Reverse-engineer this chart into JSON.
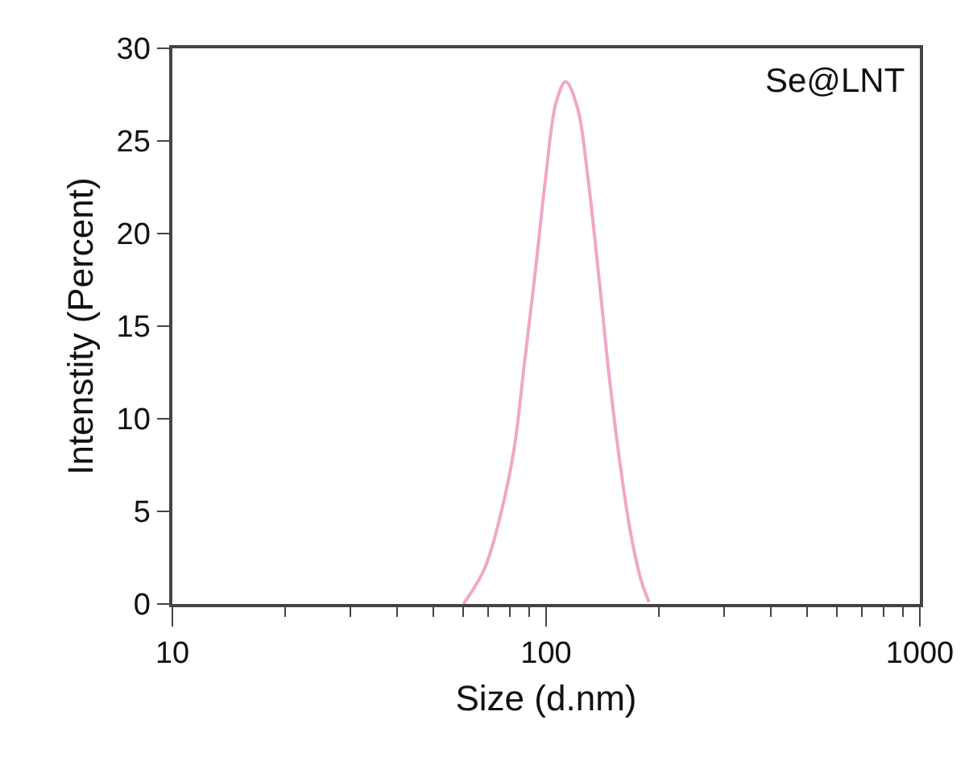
{
  "chart_data": {
    "type": "line",
    "xlabel": "Size (d.nm)",
    "ylabel": "Intenstity (Percent)",
    "log": "x",
    "annotations": [
      "Se@LNT"
    ],
    "xlim": [
      10,
      1000
    ],
    "xticks": [
      10,
      100,
      1000
    ],
    "ylim": [
      0,
      30
    ],
    "yticks": [
      0,
      5,
      10,
      15,
      20,
      25,
      30
    ],
    "marker": "none",
    "line_style": "solid",
    "series": [
      {
        "color": "#f0a6c8",
        "x": [
          60.1,
          68.4,
          75.5,
          82.0,
          87.4,
          93.4,
          99.7,
          106.4,
          112.8,
          121.3,
          129.4,
          138.2,
          147.5,
          157.4,
          168.1,
          179.5,
          188.5
        ],
        "values": [
          0.0,
          1.9,
          4.8,
          8.3,
          12.9,
          17.8,
          23.0,
          27.1,
          28.2,
          26.8,
          23.0,
          17.8,
          12.3,
          7.7,
          3.9,
          1.3,
          0.1
        ]
      }
    ]
  }
}
